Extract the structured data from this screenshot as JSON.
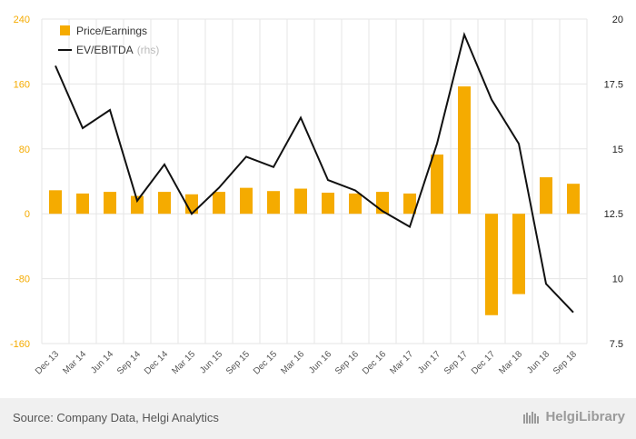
{
  "chart_data": {
    "type": "bar",
    "categories": [
      "Dec 13",
      "Mar 14",
      "Jun 14",
      "Sep 14",
      "Dec 14",
      "Mar 15",
      "Jun 15",
      "Sep 15",
      "Dec 15",
      "Mar 16",
      "Jun 16",
      "Sep 16",
      "Dec 16",
      "Mar 17",
      "Jun 17",
      "Sep 17",
      "Dec 17",
      "Mar 18",
      "Jun 18",
      "Sep 18"
    ],
    "series": [
      {
        "name": "Price/Earnings",
        "type": "bar",
        "axis": "left",
        "color": "#f5ab00",
        "values": [
          29,
          25,
          27,
          22,
          27,
          24,
          27,
          32,
          28,
          31,
          26,
          25,
          27,
          25,
          73,
          157,
          -125,
          -99,
          45,
          37
        ]
      },
      {
        "name": "EV/EBITDA",
        "type": "line",
        "axis": "right",
        "color": "#111111",
        "values": [
          18.2,
          15.8,
          16.5,
          13.0,
          14.4,
          12.5,
          13.5,
          14.7,
          14.3,
          16.2,
          13.8,
          13.4,
          12.6,
          12.0,
          15.2,
          19.4,
          16.9,
          15.2,
          9.8,
          8.7
        ]
      }
    ],
    "ylim": [
      -160,
      240
    ],
    "yticks": [
      -160,
      -80,
      0,
      80,
      160,
      240
    ],
    "yticks_labels": [
      "-160",
      "-80",
      "0",
      "80",
      "160",
      "240"
    ],
    "y2lim": [
      7.5,
      20
    ],
    "y2ticks": [
      7.5,
      10,
      12.5,
      15,
      17.5,
      20
    ],
    "y2ticks_labels": [
      "7.5",
      "10",
      "12.5",
      "15",
      "17.5",
      "20"
    ],
    "legend": [
      "Price/Earnings",
      "EV/EBITDA"
    ],
    "legend_suffix": "(rhs)",
    "legend_position": "top-left",
    "grid": true
  },
  "footer": {
    "source": "Source: Company Data, Helgi Analytics",
    "brand": "HelgiLibrary"
  },
  "colors": {
    "bar": "#f5ab00",
    "line": "#111111",
    "left_axis_text": "#f5ab00",
    "right_axis_text": "#222222",
    "grid": "#e6e6e6",
    "footer_bg": "#f0f0f0"
  }
}
